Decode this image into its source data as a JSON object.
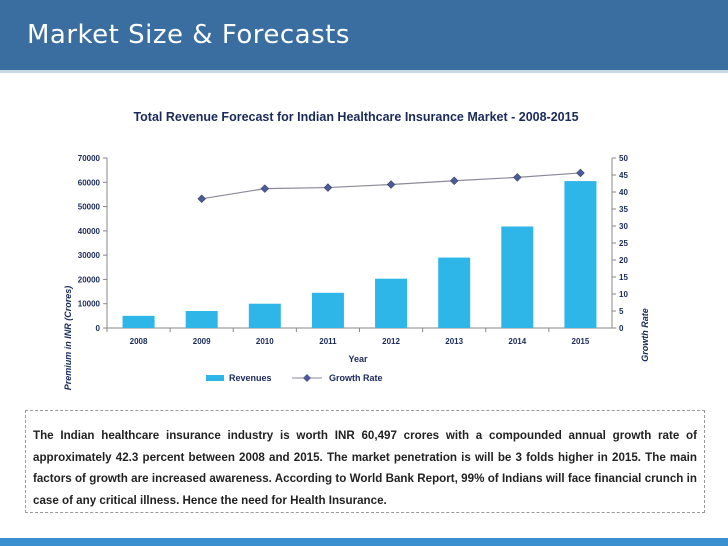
{
  "slide": {
    "title": "Market Size & Forecasts",
    "colors": {
      "header": "#3a6ea0",
      "bar": "#2fb6e8",
      "line": "#8a8a9a",
      "marker": "#4a5a9a"
    },
    "description": "The Indian healthcare insurance industry is worth INR 60,497 crores with a compounded annual growth rate of approximately 42.3 percent between 2008 and 2015.   The market penetration is will be 3 folds higher in 2015. The main factors of growth are increased awareness. According to World Bank Report, 99% of Indians will face financial crunch in case of any critical illness. Hence the need for Health Insurance."
  },
  "chart_data": {
    "type": "bar",
    "title": "Total Revenue Forecast for Indian Healthcare Insurance Market  - 2008-2015",
    "xlabel": "Year",
    "ylabel": "Premium in INR (Crores)",
    "y2label": "Growth Rate",
    "categories": [
      "2008",
      "2009",
      "2010",
      "2011",
      "2012",
      "2013",
      "2014",
      "2015"
    ],
    "ylim": [
      0,
      70000
    ],
    "y2lim": [
      0,
      50
    ],
    "yticks": [
      "0",
      "10000",
      "20000",
      "30000",
      "40000",
      "50000",
      "60000",
      "70000"
    ],
    "y2ticks": [
      "0",
      "5",
      "10",
      "15",
      "20",
      "25",
      "30",
      "35",
      "40",
      "45",
      "50"
    ],
    "series": [
      {
        "name": "Revenues",
        "type": "bar",
        "values": [
          5000,
          7000,
          10000,
          14500,
          20300,
          29000,
          41800,
          60497
        ]
      },
      {
        "name": "Growth Rate",
        "type": "line",
        "axis": "right",
        "values": [
          null,
          38,
          41,
          41.3,
          42.2,
          43.3,
          44.3,
          45.6
        ]
      }
    ],
    "legend": "bottom"
  }
}
